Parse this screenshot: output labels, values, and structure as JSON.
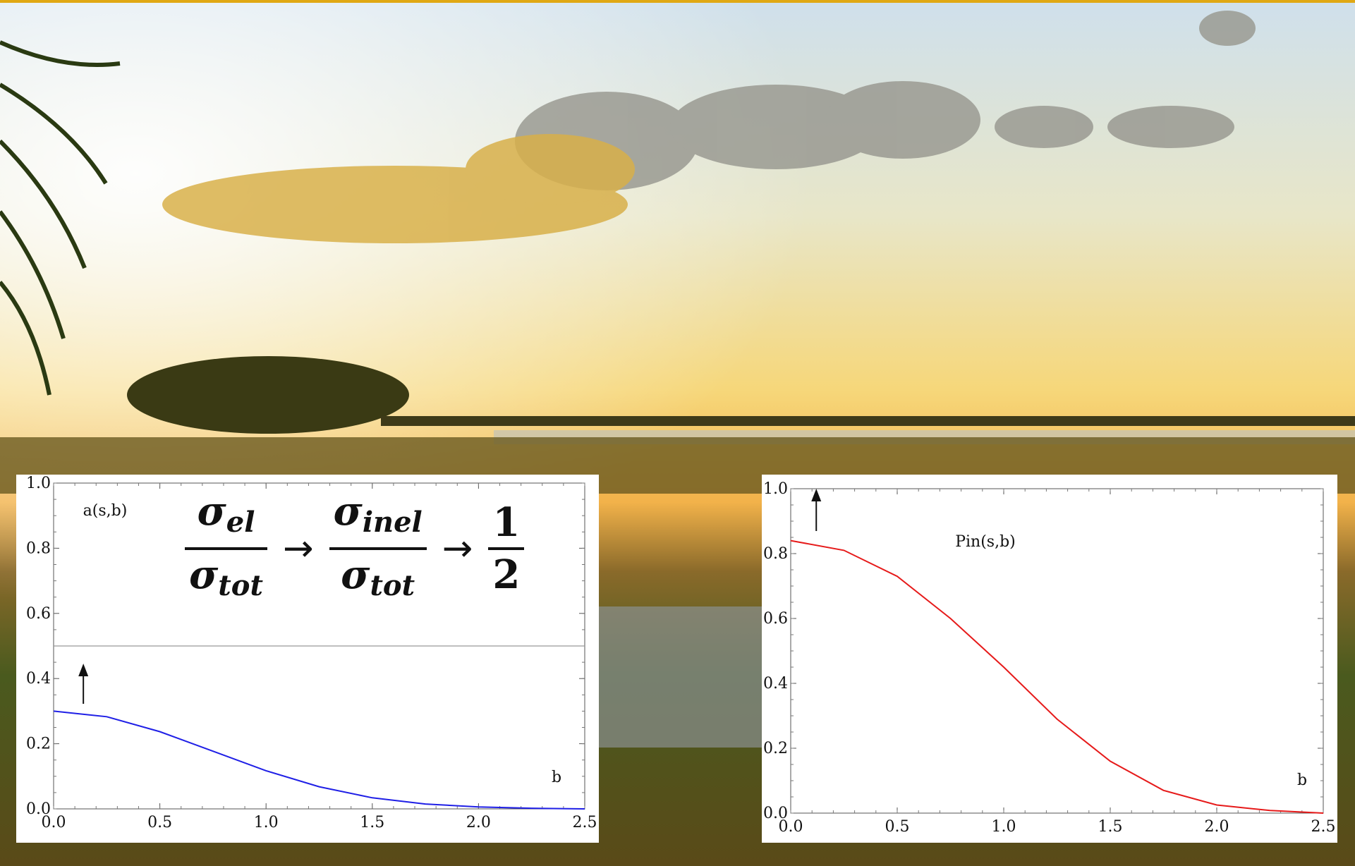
{
  "formula": {
    "sym": "σ",
    "el": "el",
    "inel": "inel",
    "tot": "tot",
    "arrow": "→",
    "one": "1",
    "two": "2"
  },
  "chart_data": [
    {
      "type": "line",
      "title": "",
      "xlabel": "b",
      "ylabel": "a(s,b)",
      "xlim": [
        0,
        2.5
      ],
      "ylim": [
        0,
        1.0
      ],
      "xticks": [
        "0.0",
        "0.5",
        "1.0",
        "1.5",
        "2.0",
        "2.5"
      ],
      "yticks": [
        "0.0",
        "0.2",
        "0.4",
        "0.6",
        "0.8",
        "1.0"
      ],
      "color": "#1f1fe6",
      "reference_line_y": 0.5,
      "arrow_at_x": 0.14,
      "series": [
        {
          "x": [
            0.0,
            0.25,
            0.5,
            0.75,
            1.0,
            1.25,
            1.5,
            1.75,
            2.0,
            2.25,
            2.5
          ],
          "y": [
            0.3,
            0.283,
            0.237,
            0.177,
            0.117,
            0.068,
            0.034,
            0.015,
            0.006,
            0.002,
            0.0
          ]
        }
      ]
    },
    {
      "type": "line",
      "title": "",
      "xlabel": "b",
      "ylabel": "Pin(s,b)",
      "xlim": [
        0,
        2.5
      ],
      "ylim": [
        0,
        1.0
      ],
      "xticks": [
        "0.0",
        "0.5",
        "1.0",
        "1.5",
        "2.0",
        "2.5"
      ],
      "yticks": [
        "0.0",
        "0.2",
        "0.4",
        "0.6",
        "0.8",
        "1.0"
      ],
      "color": "#e61a1a",
      "arrow_at_x": 0.12,
      "series": [
        {
          "x": [
            0.0,
            0.25,
            0.5,
            0.75,
            1.0,
            1.25,
            1.5,
            1.75,
            2.0,
            2.25,
            2.5
          ],
          "y": [
            0.84,
            0.81,
            0.73,
            0.6,
            0.45,
            0.29,
            0.16,
            0.07,
            0.025,
            0.008,
            0.0
          ]
        }
      ]
    }
  ]
}
